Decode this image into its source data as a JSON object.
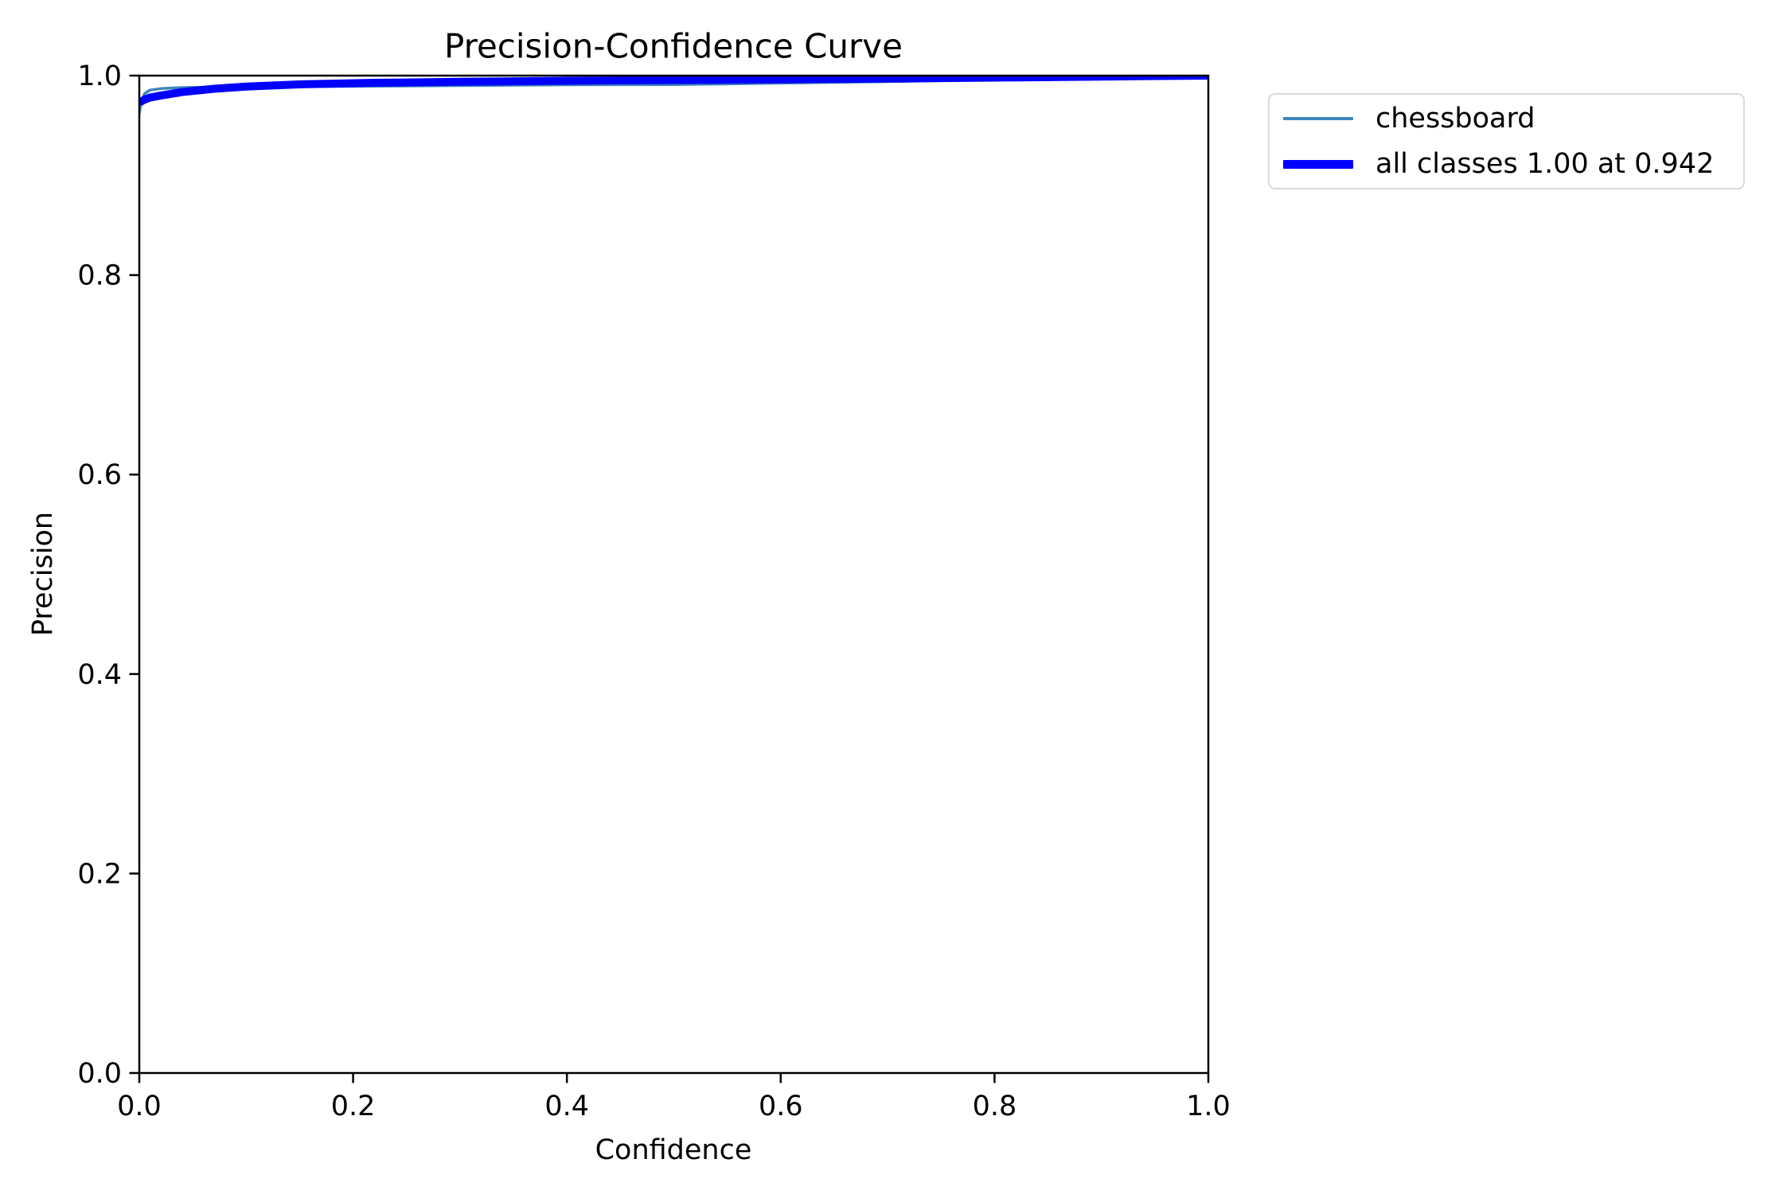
{
  "figure": {
    "background": "#ffffff",
    "spine_color": "#000000"
  },
  "chart_data": {
    "type": "line",
    "title": "Precision-Confidence Curve",
    "xlabel": "Confidence",
    "ylabel": "Precision",
    "xlim": [
      0.0,
      1.0
    ],
    "ylim": [
      0.0,
      1.0
    ],
    "grid": false,
    "legend_position": "outside upper right",
    "x_ticks": [
      0.0,
      0.2,
      0.4,
      0.6,
      0.8,
      1.0
    ],
    "x_tick_labels": [
      "0.0",
      "0.2",
      "0.4",
      "0.6",
      "0.8",
      "1.0"
    ],
    "y_ticks": [
      0.0,
      0.2,
      0.4,
      0.6,
      0.8,
      1.0
    ],
    "y_tick_labels": [
      "0.0",
      "0.2",
      "0.4",
      "0.6",
      "0.8",
      "1.0"
    ],
    "series": [
      {
        "name": "chessboard",
        "color": "#3e86ba",
        "linewidth": 3.5,
        "x": [
          0.0,
          0.002,
          0.005,
          0.01,
          0.02,
          0.04,
          0.07,
          0.1,
          0.15,
          0.22,
          0.3,
          0.4,
          0.5,
          0.6,
          0.7,
          0.8,
          0.9,
          0.942,
          1.0
        ],
        "y": [
          0.962,
          0.975,
          0.982,
          0.9855,
          0.987,
          0.988,
          0.9885,
          0.9885,
          0.989,
          0.9895,
          0.99,
          0.9908,
          0.991,
          0.9925,
          0.994,
          0.996,
          0.9985,
          1.0,
          1.0
        ]
      },
      {
        "name": "all classes 1.00 at 0.942",
        "color": "#0000ff",
        "linewidth": 10,
        "x": [
          0.0,
          0.005,
          0.01,
          0.02,
          0.04,
          0.07,
          0.1,
          0.15,
          0.22,
          0.3,
          0.4,
          0.5,
          0.6,
          0.7,
          0.8,
          0.9,
          0.942,
          1.0
        ],
        "y": [
          0.973,
          0.976,
          0.978,
          0.98,
          0.9835,
          0.9868,
          0.989,
          0.9912,
          0.9928,
          0.9938,
          0.9948,
          0.9955,
          0.9962,
          0.997,
          0.998,
          0.999,
          0.9995,
          1.0
        ]
      }
    ]
  }
}
